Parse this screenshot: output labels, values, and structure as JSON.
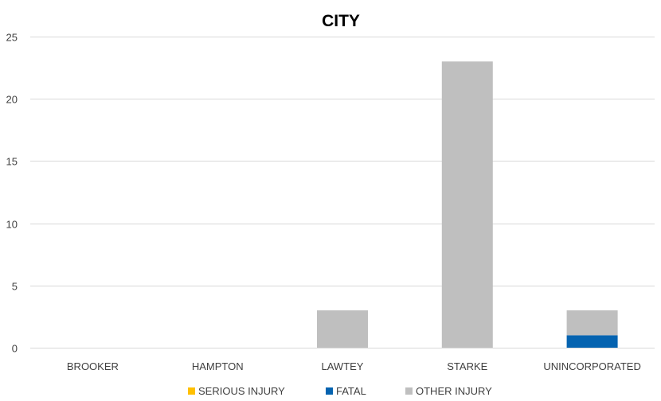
{
  "chart_data": {
    "type": "bar",
    "stacked": true,
    "title": "CITY",
    "xlabel": "",
    "ylabel": "",
    "categories": [
      "BROOKER",
      "HAMPTON",
      "LAWTEY",
      "STARKE",
      "UNINCORPORATED"
    ],
    "series": [
      {
        "name": "SERIOUS INJURY",
        "values": [
          0,
          0,
          0,
          0,
          0
        ],
        "color": "#FFC000"
      },
      {
        "name": "FATAL",
        "values": [
          0,
          0,
          0,
          0,
          1
        ],
        "color": "#0563B0"
      },
      {
        "name": "OTHER INJURY",
        "values": [
          0,
          0,
          3,
          23,
          2
        ],
        "color": "#BFBFBF"
      }
    ],
    "ylim": [
      0,
      25
    ],
    "yticks": [
      0,
      5,
      10,
      15,
      20,
      25
    ],
    "grid": true,
    "legend_position": "bottom"
  }
}
